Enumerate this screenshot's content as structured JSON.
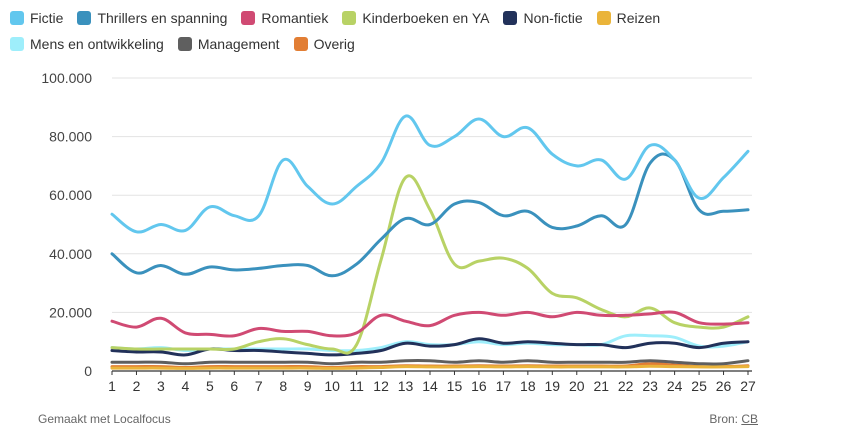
{
  "chart_data": {
    "type": "line",
    "title": "",
    "xlabel": "",
    "ylabel": "",
    "ylim": [
      0,
      100000
    ],
    "yticks": [
      0,
      20000,
      40000,
      60000,
      80000,
      100000
    ],
    "ytick_labels": [
      "0",
      "20.000",
      "40.000",
      "60.000",
      "80.000",
      "100.000"
    ],
    "x": [
      1,
      2,
      3,
      4,
      5,
      6,
      7,
      8,
      9,
      10,
      11,
      12,
      13,
      14,
      15,
      16,
      17,
      18,
      19,
      20,
      21,
      22,
      23,
      24,
      25,
      26,
      27
    ],
    "grid": true,
    "legend": "top",
    "series": [
      {
        "name": "Fictie",
        "color": "#62c7ee",
        "values": [
          53500,
          47500,
          50000,
          48000,
          56000,
          53000,
          53000,
          72000,
          63000,
          57000,
          63000,
          71000,
          87000,
          77000,
          80000,
          86000,
          80000,
          83000,
          74000,
          70000,
          72000,
          65500,
          77000,
          72000,
          59000,
          66000,
          75000
        ]
      },
      {
        "name": "Thrillers en spanning",
        "color": "#3a91bd",
        "values": [
          40000,
          33500,
          36000,
          33000,
          35500,
          34500,
          35000,
          36000,
          36000,
          32500,
          36500,
          45000,
          52000,
          50000,
          57000,
          57500,
          53000,
          54500,
          49000,
          49500,
          53000,
          50000,
          71000,
          72000,
          55000,
          54500,
          55000
        ]
      },
      {
        "name": "Romantiek",
        "color": "#d04a73",
        "values": [
          17000,
          15000,
          18000,
          13000,
          12500,
          12000,
          14500,
          13500,
          13500,
          12000,
          13000,
          19000,
          17000,
          15500,
          19000,
          20000,
          19000,
          20000,
          18500,
          20000,
          19000,
          19000,
          19500,
          20000,
          16500,
          16000,
          16500
        ]
      },
      {
        "name": "Kinderboeken en YA",
        "color": "#b8d265",
        "values": [
          8000,
          7500,
          7500,
          7500,
          7500,
          7500,
          10000,
          11000,
          9000,
          7500,
          9000,
          38000,
          66000,
          55000,
          36500,
          37500,
          38500,
          35000,
          26500,
          25000,
          21000,
          18500,
          21500,
          16500,
          15000,
          15000,
          18500
        ]
      },
      {
        "name": "Non-fictie",
        "color": "#22315a",
        "values": [
          7000,
          6500,
          6500,
          5500,
          7500,
          7000,
          7000,
          6500,
          6000,
          5500,
          6000,
          7000,
          9500,
          8500,
          9000,
          11000,
          9500,
          10000,
          9500,
          9000,
          9000,
          8000,
          9500,
          9500,
          8000,
          9500,
          10000
        ]
      },
      {
        "name": "Reizen",
        "color": "#eab43a",
        "values": [
          1000,
          1000,
          1000,
          900,
          1000,
          1000,
          1000,
          1000,
          1000,
          900,
          1000,
          1200,
          1500,
          1400,
          1400,
          1500,
          1400,
          1500,
          1400,
          1400,
          1400,
          1400,
          1600,
          1500,
          1400,
          1400,
          1500
        ]
      },
      {
        "name": "Mens en ontwikkeling",
        "color": "#9eeefb",
        "values": [
          8000,
          7500,
          8000,
          7000,
          7500,
          7500,
          7500,
          7500,
          7500,
          7000,
          7000,
          8000,
          10000,
          9000,
          9000,
          10000,
          9000,
          9500,
          9000,
          9000,
          9000,
          12000,
          12000,
          11500,
          8500,
          8500,
          10000
        ]
      },
      {
        "name": "Management",
        "color": "#5f5f5f",
        "values": [
          3000,
          3000,
          3000,
          2500,
          3000,
          3000,
          3000,
          3000,
          3000,
          2500,
          3000,
          3000,
          3500,
          3500,
          3000,
          3500,
          3000,
          3500,
          3000,
          3000,
          3000,
          3000,
          3500,
          3000,
          2500,
          2500,
          3500
        ]
      },
      {
        "name": "Overig",
        "color": "#e27e34",
        "values": [
          1500,
          1500,
          1500,
          1200,
          1500,
          1500,
          1500,
          1500,
          1500,
          1200,
          1500,
          1500,
          1800,
          1700,
          1700,
          1800,
          1700,
          1800,
          1700,
          1700,
          1700,
          1700,
          2500,
          2000,
          1500,
          1500,
          1800
        ]
      }
    ]
  },
  "footer": {
    "credit": "Gemaakt met Localfocus",
    "source_prefix": "Bron: ",
    "source": "CB"
  }
}
